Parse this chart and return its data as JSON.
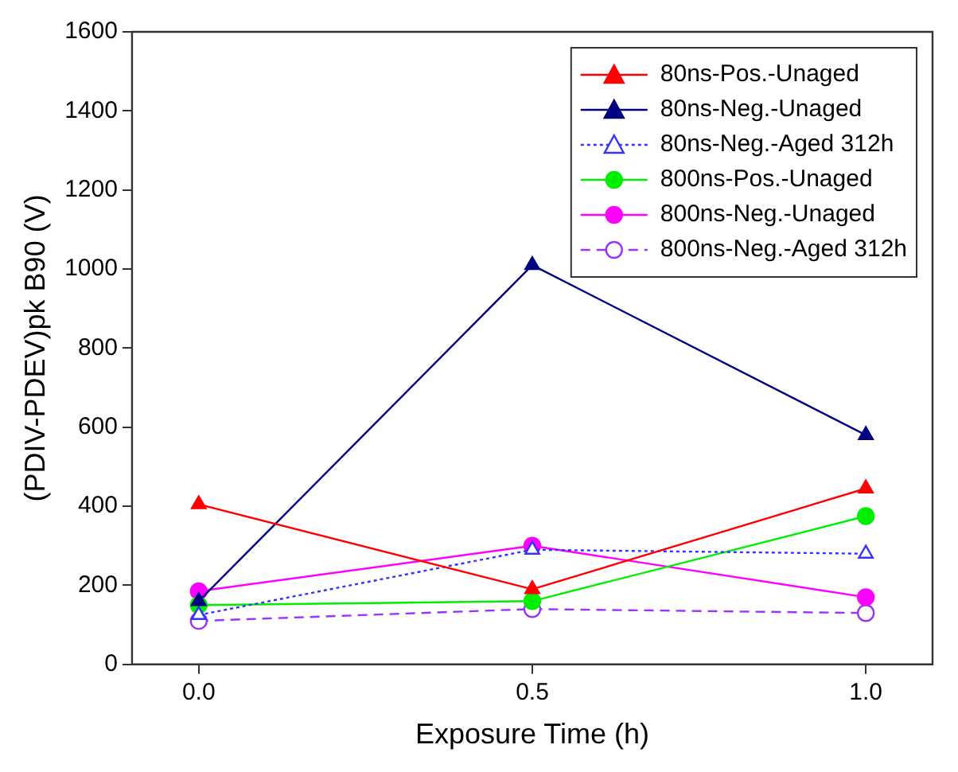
{
  "chart_data": {
    "type": "line",
    "xlabel": "Exposure Time (h)",
    "ylabel": "(PDIV-PDEV)pk B90 (V)",
    "x": [
      0,
      0.5,
      1
    ],
    "xlim": [
      -0.1,
      1.1
    ],
    "xticks": [
      {
        "value": 0,
        "label": "0.0"
      },
      {
        "value": 0.5,
        "label": "0.5"
      },
      {
        "value": 1,
        "label": "1.0"
      }
    ],
    "ylim": [
      0,
      1600
    ],
    "yticks": [
      0,
      200,
      400,
      600,
      800,
      1000,
      1200,
      1400,
      1600
    ],
    "grid": false,
    "legend": "top right",
    "series": [
      {
        "name": "80ns-Pos.-Unaged",
        "color": "#ff0000",
        "marker": "triangle",
        "line_style": "solid",
        "values": [
          405,
          190,
          445
        ]
      },
      {
        "name": "80ns-Neg.-Unaged",
        "color": "#000080",
        "marker": "triangle",
        "line_style": "solid",
        "values": [
          160,
          1010,
          580
        ]
      },
      {
        "name": "80ns-Neg.-Aged 312h",
        "color": "#3333ff",
        "marker": "triangle",
        "line_style": "dotted",
        "values": [
          125,
          290,
          280
        ]
      },
      {
        "name": "800ns-Pos.-Unaged",
        "color": "#00ee00",
        "marker": "circle",
        "line_style": "solid",
        "values": [
          150,
          160,
          375
        ]
      },
      {
        "name": "800ns-Neg.-Unaged",
        "color": "#ff00ff",
        "marker": "circle",
        "line_style": "solid",
        "values": [
          185,
          300,
          170
        ]
      },
      {
        "name": "800ns-Neg.-Aged 312h",
        "color": "#9933ff",
        "marker": "circle",
        "line_style": "dashed",
        "values": [
          110,
          140,
          130
        ]
      }
    ]
  }
}
